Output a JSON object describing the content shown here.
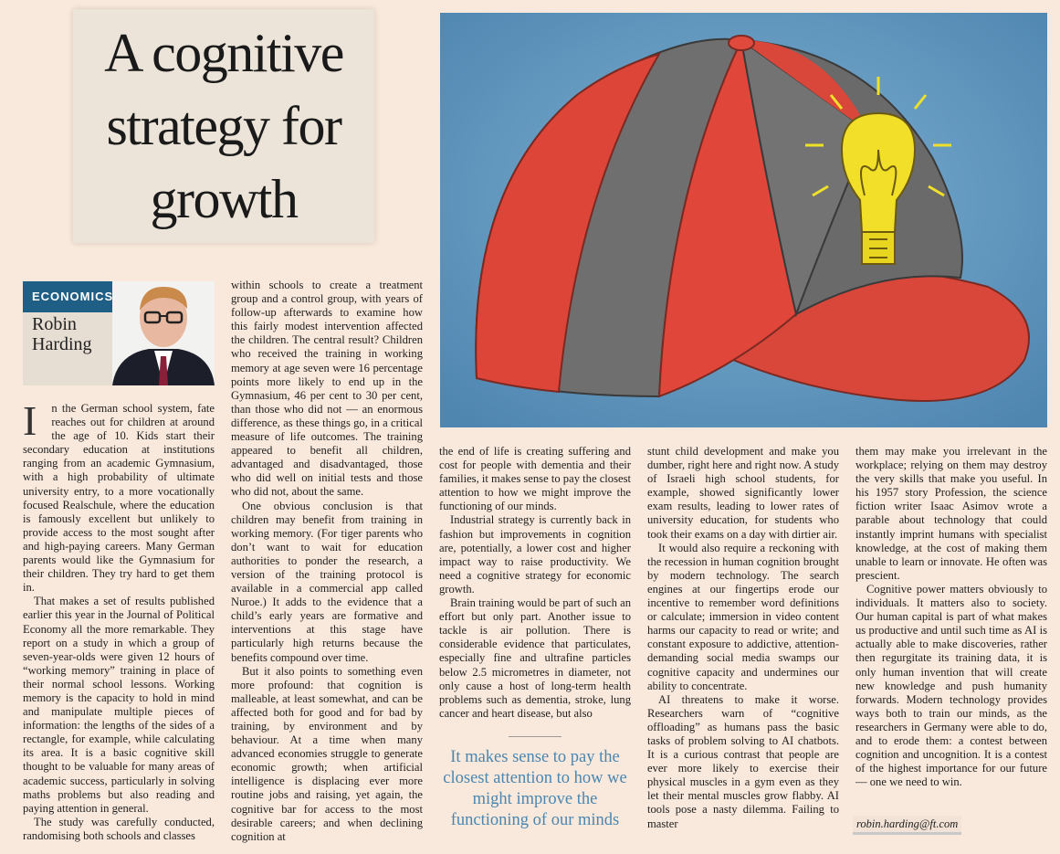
{
  "headline": "A cognitive strategy for growth",
  "byline": {
    "section": "ECONOMICS",
    "author": "Robin Harding"
  },
  "drop_cap": "I",
  "columns": [
    {
      "paragraphs": [
        "n the German school system, fate reaches out for children at around the age of 10. Kids start their secondary education at institutions ranging from an academic Gymnasium, with a high probability of ultimate university entry, to a more vocationally focused Realschule, where the education is famously excellent but unlikely to provide access to the most sought after and high-paying careers. Many German parents would like the Gymnasium for their children. They try hard to get them in.",
        "That makes a set of results published earlier this year in the Journal of Political Economy all the more remarkable. They report on a study in which a group of seven-year-olds were given 12 hours of “working memory” training in place of their normal school lessons. Working memory is the capacity to hold in mind and manipulate multiple pieces of information: the lengths of the sides of a rectangle, for example, while calculating its area. It is a basic cognitive skill thought to be valuable for many areas of academic success, particularly in solving maths problems but also reading and paying attention in general.",
        "The study was carefully conducted, randomising both schools and classes"
      ]
    },
    {
      "paragraphs": [
        "within schools to create a treatment group and a control group, with years of follow-up afterwards to examine how this fairly modest intervention affected the children. The central result? Children who received the training in working memory at age seven were 16 percentage points more likely to end up in the Gymnasium, 46 per cent to 30 per cent, than those who did not — an enormous difference, as these things go, in a critical measure of life outcomes. The training appeared to benefit all children, advantaged and disadvantaged, those who did well on initial tests and those who did not, about the same.",
        "One obvious conclusion is that children may benefit from training in working memory. (For tiger parents who don’t want to wait for education authorities to ponder the research, a version of the training protocol is available in a commercial app called Nuroe.) It adds to the evidence that a child’s early years are formative and interventions at this stage have particularly high returns because the benefits compound over time.",
        "But it also points to something even more profound: that cognition is malleable, at least somewhat, and can be affected both for good and for bad by training, by environment and by behaviour. At a time when many advanced economies struggle to generate economic growth; when artificial intelligence is displacing ever more routine jobs and raising, yet again, the cognitive bar for access to the most desirable careers; and when declining cognition at"
      ]
    },
    {
      "paragraphs": [
        "the end of life is creating suffering and cost for people with dementia and their families, it makes sense to pay the closest attention to how we might improve the functioning of our minds.",
        "Industrial strategy is currently back in fashion but improvements in cognition are, potentially, a lower cost and higher impact way to raise productivity. We need a cognitive strategy for economic growth.",
        "Brain training would be part of such an effort but only part. Another issue to tackle is air pollution. There is considerable evidence that particulates, especially fine and ultrafine particles below 2.5 micrometres in diameter, not only cause a host of long-term health problems such as dementia, stroke, lung cancer and heart disease, but also"
      ]
    },
    {
      "paragraphs": [
        "stunt child development and make you dumber, right here and right now. A study of Israeli high school students, for example, showed significantly lower exam results, leading to lower rates of university education, for students who took their exams on a day with dirtier air.",
        "It would also require a reckoning with the recession in human cognition brought by modern technology. The search engines at our fingertips erode our incentive to remember word definitions or calculate; immersion in video content harms our capacity to read or write; and constant exposure to addictive, attention-demanding social media swamps our cognitive capacity and undermines our ability to concentrate.",
        "AI threatens to make it worse. Researchers warn of “cognitive offloading” as humans pass the basic tasks of problem solving to AI chatbots. It is a curious contrast that people are ever more likely to exercise their physical muscles in a gym even as they let their mental muscles grow flabby. AI tools pose a nasty dilemma. Failing to master"
      ]
    },
    {
      "paragraphs": [
        "them may make you irrelevant in the workplace; relying on them may destroy the very skills that make you useful. In his 1957 story Profession, the science fiction writer Isaac Asimov wrote a parable about technology that could instantly imprint humans with specialist knowledge, at the cost of making them unable to learn or innovate. He often was prescient.",
        "Cognitive power matters obviously to individuals. It matters also to society. Our human capital is part of what makes us productive and until such time as AI is actually able to make discoveries, rather then regurgitate its training data, it is only human invention that will create new knowledge and push humanity forwards. Modern technology provides ways both to train our minds, as the researchers in Germany were able to do, and to erode them: a contest between cognition and uncognition. It is a contest of the highest importance for our future — one we need to win."
      ]
    }
  ],
  "pull_quote": "It makes sense to pay the closest attention to how we might improve the functioning of our minds",
  "email": "robin.harding@ft.com"
}
